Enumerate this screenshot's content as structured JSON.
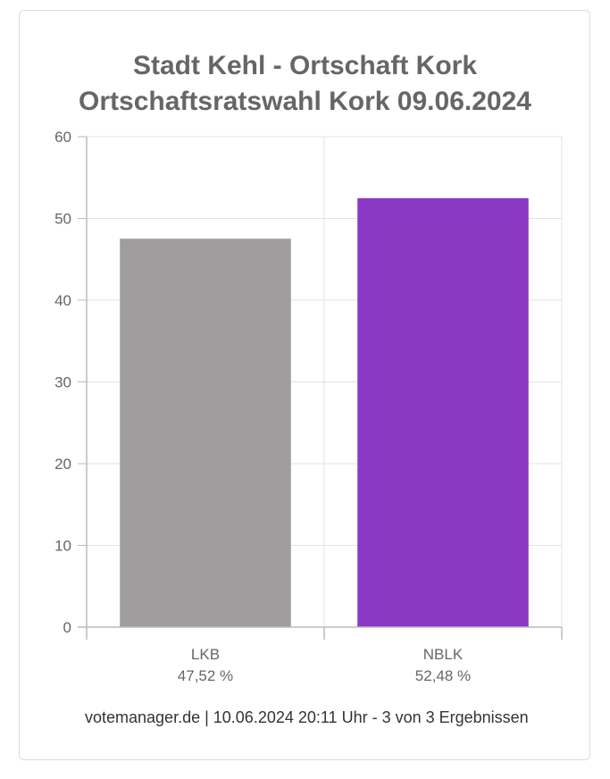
{
  "chart_data": {
    "type": "bar",
    "title": "Stadt Kehl - Ortschaft Kork",
    "subtitle": "Ortschaftsratswahl Kork 09.06.2024",
    "categories": [
      "LKB",
      "NBLK"
    ],
    "values": [
      47.52,
      52.48
    ],
    "value_labels": [
      "47,52 %",
      "52,48 %"
    ],
    "colors": [
      "#a09d9e",
      "#8b38c4"
    ],
    "ylim": [
      0,
      60
    ],
    "yticks": [
      0,
      10,
      20,
      30,
      40,
      50,
      60
    ],
    "grid": true,
    "legend": "none",
    "xlabel": "",
    "ylabel": ""
  },
  "footer": "votemanager.de | 10.06.2024 20:11 Uhr - 3 von 3 Ergebnissen"
}
